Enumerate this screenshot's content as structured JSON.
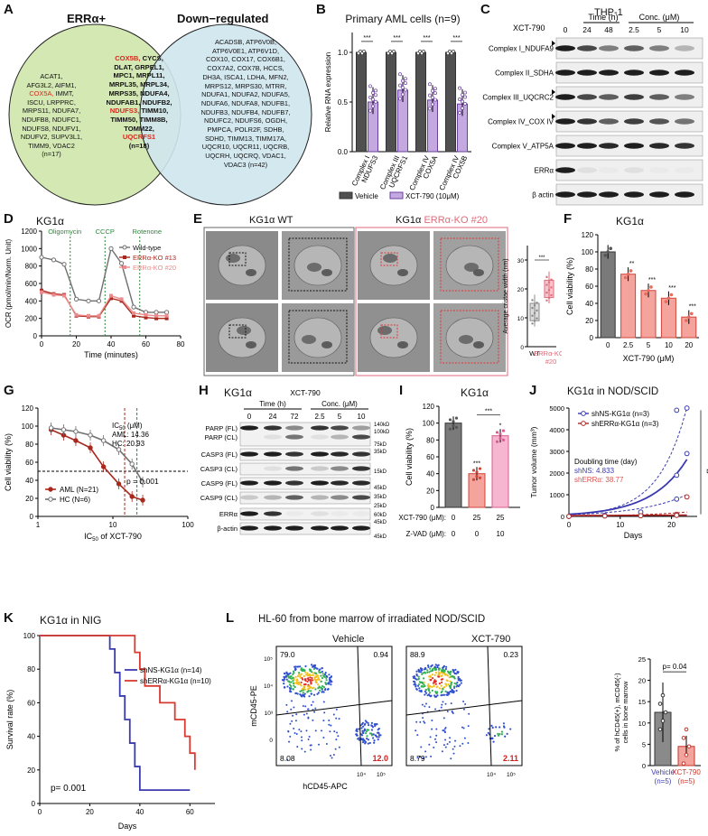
{
  "panels": {
    "A": {
      "label": "A",
      "left_title": "ERRα+",
      "right_title": "Down−regulated",
      "left_genes": [
        "ACAT1,",
        "AFG3L2, AIFM1,",
        "COX5A, IMMT,",
        "ISCU, LRPPRC,",
        "MRPS11, NDUFA7,",
        "NDUFB8, NDUFC1,",
        "NDUFS8, NDUFV1,",
        "NDUFV2, SUPV3L1,",
        "TIMM9, VDAC2",
        "(n=17)"
      ],
      "center_genes": [
        "COX5B, CYCS,",
        "DLAT, GRPEL1,",
        "MPC1, MRPL11,",
        "MRPL35, MRPL34,",
        "MRPS35, NDUFA4,",
        "NDUFAB1, NDUFB2,",
        "NDUFS3, TIMM10,",
        "TIMM50, TIMM8B,",
        "TOMM22,",
        "UQCRFS1",
        "(n=18)"
      ],
      "right_genes": [
        "ACADSB, ATP6V0B,",
        "ATP6V0E1, ATP6V1D,",
        "COX10, COX17, COX6B1,",
        "COX7A2, COX7B, HCCS,",
        "DH3A, ISCA1, LDHA, MFN2,",
        "MRPS12, MRPS30, MTRR,",
        "NDUFA1, NDUFA2, NDUFA5,",
        "NDUFA6, NDUFA8, NDUFB1,",
        "NDUFB3, NDUFB4, NDUFB7,",
        "NDUFC2, NDUFS6, OGDH,",
        "PMPCA, POLR2F, SDHB,",
        "SDHD, TIMM13, TIMM17A,",
        "UQCR10, UQCR11, UQCRB,",
        "UQCRH, UQCRQ, VDAC1,",
        "VDAC3 (n=42)"
      ],
      "red_color": "#d62a1e"
    },
    "B": {
      "label": "B",
      "title": "Primary AML cells (n=9)",
      "ylabel": "Relative RNA expression",
      "legend": [
        "Vehicle",
        "XCT-790 (10μM)"
      ],
      "sig": [
        "***",
        "***",
        "***",
        "***"
      ],
      "colors": {
        "vehicle": "#505050",
        "xct": "#c3a9e0",
        "xct_edge": "#6a3fa0"
      }
    },
    "C": {
      "label": "C",
      "title": "THP-1",
      "treat": "XCT-790",
      "time_header": "Time (h)",
      "conc_header": "Conc. (μM)",
      "lanes": [
        "0",
        "24",
        "48",
        "2.5",
        "5",
        "10"
      ],
      "rows": [
        "Complex I_NDUFA9",
        "Complex II_SDHA",
        "Complex III_UQCRC2",
        "Complex IV_COX IV",
        "Complex V_ATP5A",
        "ERRα",
        "β actin"
      ]
    },
    "D": {
      "label": "D",
      "title": "KG1α",
      "ylabel": "OCR (pmol/min/Norm. Unit)",
      "xlabel": "Time (minutes)",
      "annotations": [
        "Oligomycin",
        "CCCP",
        "Rotenone"
      ],
      "legend": [
        "Wild-type",
        "ERRα-KO #13",
        "ERRα-KO #20"
      ]
    },
    "E": {
      "label": "E",
      "wt_title": "KG1α WT",
      "ko_prefix": "KG1α ",
      "ko_title": "ERRα-KO #20",
      "ylabel": "Average cristae width (nm)",
      "sig": "***",
      "xcats": [
        "WT",
        "ERRα-KO",
        "#20"
      ]
    },
    "F": {
      "label": "F",
      "title": "KG1α",
      "ylabel": "Cell viability (%)",
      "xlabel": "XCT-790 (μM)",
      "sig": [
        "",
        "**",
        "***",
        "***",
        "***"
      ]
    },
    "G": {
      "label": "G",
      "ylabel": "Cell viability (%)",
      "xlabel_main": "IC",
      "xlabel_sub": "50",
      "xlabel_rest": " of XCT-790",
      "ic50_head": "IC",
      "ic50_sub": "50",
      "ic50_unit": " (μM)",
      "ic50_aml": "AML: 14.36",
      "ic50_hc": "HC: 20.93",
      "pval": "p = 0.001",
      "legend": [
        "AML (N=21)",
        "HC (N=6)"
      ]
    },
    "H": {
      "label": "H",
      "title": "KG1α",
      "treat": "XCT-790",
      "time_header": "Time (h)",
      "conc_header": "Conc. (μM)",
      "lanes": [
        "0",
        "24",
        "72",
        "2.5",
        "5",
        "10"
      ],
      "rows": [
        "PARP (FL)",
        "PARP (CL)",
        "CASP3 (FL)",
        "CASP3 (CL)",
        "CASP9 (FL)",
        "CASP9 (CL)",
        "ERRα",
        "β-actin"
      ],
      "mw": [
        "140kD",
        "100kD",
        "75kD",
        "35kD",
        "15kD",
        "45kD",
        "35kD",
        "25kD",
        "60kD",
        "45kD",
        "45kD"
      ]
    },
    "I": {
      "label": "I",
      "title": "KG1α",
      "ylabel": "Cell viability (%)",
      "xct_label": "XCT-790 (μM):",
      "zvad_label": "Z-VAD (μM):",
      "xct_vals": [
        "0",
        "25",
        "25"
      ],
      "zvad_vals": [
        "0",
        "0",
        "10"
      ],
      "sig": [
        "***",
        "*",
        "***"
      ]
    },
    "J": {
      "label": "J",
      "title": "KG1α in NOD/SCID",
      "ylabel": "Tumor volume (mm³)",
      "xlabel": "Days",
      "legend": [
        "shNS-KG1α (n=3)",
        "shERRα-KG1α (n=3)"
      ],
      "doubling": "Doubling time (day)",
      "dt_ns": "shNS: 4.833",
      "dt_err": "shERRα: 38.77",
      "sig": "**"
    },
    "K": {
      "label": "K",
      "title": "KG1α in NIG",
      "ylabel": "Survival rate (%)",
      "xlabel": "Days",
      "legend": [
        "shNS-KG1α (n=14)",
        "shERRα-KG1α (n=10)"
      ],
      "pval": "p= 0.001"
    },
    "L": {
      "label": "L",
      "title": "HL-60 from bone marrow of irradiated NOD/SCID",
      "veh_title": "Vehicle",
      "xct_title": "XCT-790",
      "ylabel": "mCD45-PE",
      "xlabel": "hCD45-APC",
      "veh_q": [
        "79.0",
        "0.94",
        "8.08",
        "12.0"
      ],
      "xct_q": [
        "88.9",
        "0.23",
        "8.79",
        "2.11"
      ],
      "bar_ylabel": "% of hCD45(+), mCD45(-) cells in bone marrow",
      "bar_cats": [
        "Vehicle",
        "XCT-790"
      ],
      "bar_n": [
        "(n=5)",
        "(n=5)"
      ],
      "pval": "p= 0.04"
    }
  },
  "chart_data": [
    {
      "panel": "B",
      "type": "bar",
      "categories": [
        "Complex I NDUFS3",
        "Complex III UQCRFS1",
        "Complex IV COX5A",
        "Complex IV COX5B"
      ],
      "series": [
        {
          "name": "Vehicle",
          "values": [
            1.0,
            1.0,
            1.0,
            1.0
          ]
        },
        {
          "name": "XCT-790 (10μM)",
          "values": [
            0.5,
            0.62,
            0.52,
            0.48
          ]
        }
      ],
      "ylabel": "Relative RNA expression",
      "ylim": [
        0,
        1.2
      ]
    },
    {
      "panel": "D",
      "type": "line",
      "x": [
        0,
        7,
        13,
        20,
        27,
        33,
        40,
        46,
        53,
        60,
        66,
        72
      ],
      "series": [
        {
          "name": "Wild-type",
          "values": [
            900,
            870,
            820,
            420,
            400,
            400,
            1000,
            830,
            330,
            270,
            270,
            270
          ]
        },
        {
          "name": "ERRα-KO #13",
          "values": [
            520,
            480,
            470,
            230,
            220,
            220,
            430,
            400,
            230,
            210,
            200,
            200
          ]
        },
        {
          "name": "ERRα-KO #20",
          "values": [
            500,
            470,
            460,
            240,
            230,
            230,
            460,
            420,
            260,
            240,
            230,
            230
          ]
        }
      ],
      "xlabel": "Time (minutes)",
      "ylabel": "OCR (pmol/min/Norm. Unit)",
      "xlim": [
        0,
        80
      ],
      "ylim": [
        0,
        1200
      ]
    },
    {
      "panel": "E",
      "type": "bar",
      "categories": [
        "WT",
        "ERRα-KO #20"
      ],
      "values": [
        12,
        20
      ],
      "ylabel": "Average cristae width (nm)",
      "ylim": [
        0,
        35
      ]
    },
    {
      "panel": "F",
      "type": "bar",
      "categories": [
        "0",
        "2.5",
        "5",
        "10",
        "20"
      ],
      "values": [
        100,
        74,
        55,
        46,
        24
      ],
      "xlabel": "XCT-790 (μM)",
      "ylabel": "Cell viability (%)",
      "ylim": [
        0,
        120
      ]
    },
    {
      "panel": "G",
      "type": "line",
      "x": [
        1.5,
        2.2,
        3.2,
        5,
        7.5,
        12,
        18,
        25
      ],
      "series": [
        {
          "name": "AML (N=21)",
          "values": [
            96,
            90,
            84,
            76,
            55,
            36,
            22,
            18
          ]
        },
        {
          "name": "HC (N=6)",
          "values": [
            98,
            96,
            94,
            90,
            84,
            74,
            58,
            38
          ]
        }
      ],
      "xlabel": "IC50 of XCT-790",
      "ylabel": "Cell viability (%)",
      "ylim": [
        0,
        120
      ],
      "xscale": "log"
    },
    {
      "panel": "I",
      "type": "bar",
      "categories": [
        "0/0",
        "25/0",
        "25/10"
      ],
      "values": [
        100,
        40,
        85
      ],
      "ylabel": "Cell viability (%)",
      "ylim": [
        0,
        120
      ]
    },
    {
      "panel": "J",
      "type": "scatter",
      "series": [
        {
          "name": "shNS-KG1α (n=3)",
          "x": [
            0,
            7,
            14,
            21,
            21,
            21,
            23,
            23
          ],
          "y": [
            0,
            50,
            200,
            1900,
            4900,
            800,
            2900,
            5000
          ]
        },
        {
          "name": "shERRα-KG1α (n=3)",
          "x": [
            0,
            7,
            14,
            21,
            21,
            23
          ],
          "y": [
            0,
            20,
            30,
            100,
            50,
            900
          ]
        }
      ],
      "xlabel": "Days",
      "ylabel": "Tumor volume (mm³)",
      "ylim": [
        0,
        5000
      ],
      "xlim": [
        0,
        25
      ]
    },
    {
      "panel": "K",
      "type": "line",
      "series": [
        {
          "name": "shNS-KG1α (n=14)",
          "x": [
            0,
            28,
            30,
            32,
            34,
            36,
            38,
            40,
            60
          ],
          "values": [
            100,
            92,
            78,
            64,
            50,
            36,
            22,
            8,
            8
          ]
        },
        {
          "name": "shERRα-KG1α (n=10)",
          "x": [
            0,
            38,
            40,
            42,
            48,
            54,
            58,
            60,
            62
          ],
          "values": [
            100,
            90,
            80,
            70,
            60,
            50,
            40,
            30,
            20
          ]
        }
      ],
      "xlabel": "Days",
      "ylabel": "Survival rate (%)",
      "ylim": [
        0,
        100
      ],
      "xlim": [
        0,
        70
      ]
    },
    {
      "panel": "L",
      "type": "bar",
      "categories": [
        "Vehicle",
        "XCT-790"
      ],
      "values": [
        12.5,
        4.5
      ],
      "ylabel": "% of hCD45(+), mCD45(-) cells in bone marrow",
      "ylim": [
        0,
        25
      ]
    }
  ]
}
